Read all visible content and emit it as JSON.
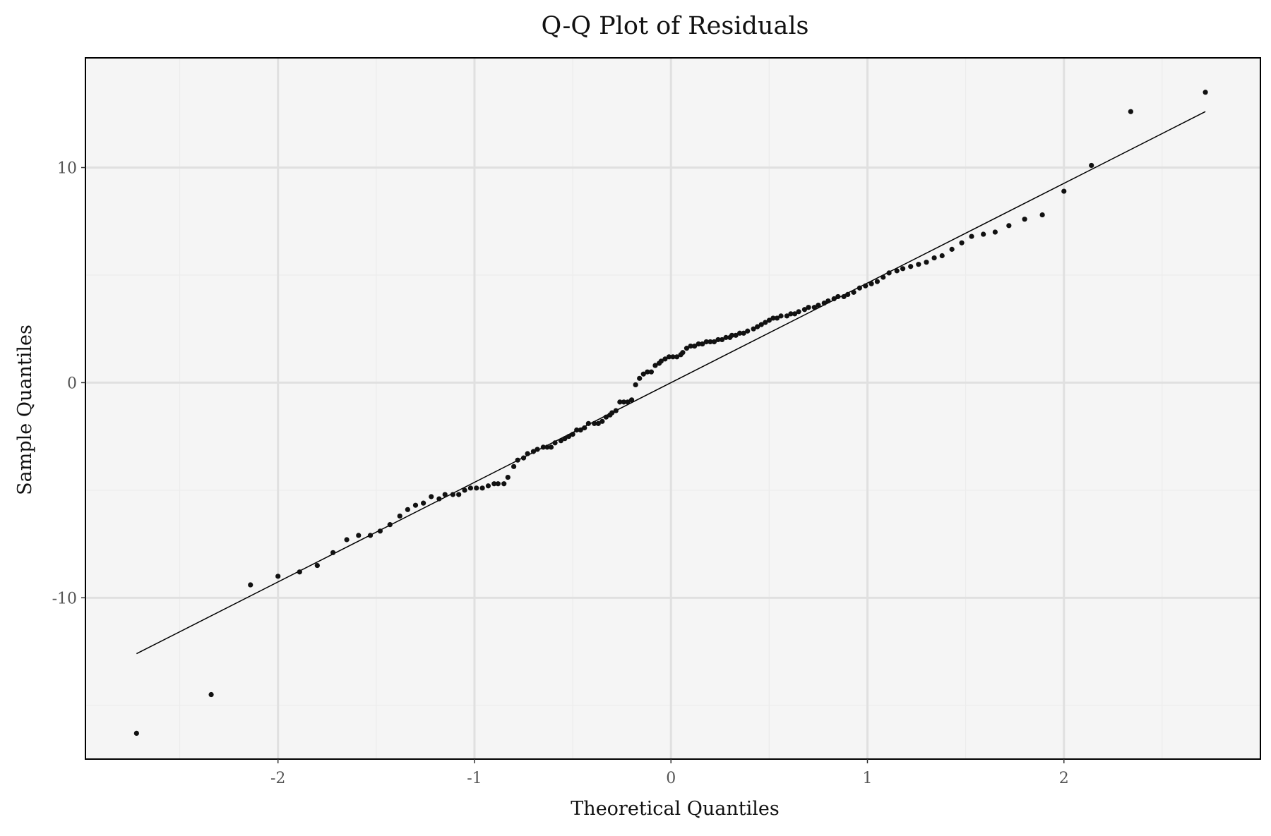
{
  "chart_data": {
    "type": "scatter",
    "title": "Q-Q Plot of Residuals",
    "xlabel": "Theoretical Quantiles",
    "ylabel": "Sample Quantiles",
    "xlim": [
      -2.98,
      3.0
    ],
    "ylim": [
      -17.5,
      15.1
    ],
    "x_ticks": [
      -2,
      -1,
      0,
      1,
      2
    ],
    "x_tick_labels": [
      "-2",
      "-1",
      "0",
      "1",
      "2"
    ],
    "y_ticks": [
      -10,
      0,
      10
    ],
    "y_tick_labels": [
      "-10",
      "0",
      "10"
    ],
    "x_minor_ticks": [
      -2.5,
      -1.5,
      -0.5,
      0.5,
      1.5,
      2.5
    ],
    "y_minor_ticks": [
      -15,
      -5,
      5
    ],
    "grid": true,
    "legend": false,
    "colors": {
      "panel": "#f5f5f5",
      "grid": "#e0e0e0",
      "grid_minor": "#ececec",
      "points": "#111111",
      "line": "#000000"
    },
    "reference_line": {
      "x": [
        -2.72,
        2.72
      ],
      "y": [
        -12.6,
        12.6
      ]
    },
    "series": [
      {
        "x": [
          -2.72,
          -2.34,
          -2.14,
          -2.0,
          -1.89,
          -1.8,
          -1.72,
          -1.65,
          -1.59,
          -1.53,
          -1.48,
          -1.43,
          -1.38,
          -1.34,
          -1.3,
          -1.26,
          -1.22,
          -1.18,
          -1.15,
          -1.11,
          -1.08,
          -1.05,
          -1.02,
          -0.99,
          -0.96,
          -0.93,
          -0.9,
          -0.88,
          -0.85,
          -0.83,
          -0.8,
          -0.78,
          -0.75,
          -0.73,
          -0.7,
          -0.68,
          -0.65,
          -0.63,
          -0.61,
          -0.59,
          -0.56,
          -0.54,
          -0.52,
          -0.5,
          -0.48,
          -0.46,
          -0.44,
          -0.42,
          -0.39,
          -0.37,
          -0.35,
          -0.33,
          -0.31,
          -0.3,
          -0.28,
          -0.26,
          -0.24,
          -0.22,
          -0.2,
          -0.18,
          -0.16,
          -0.14,
          -0.12,
          -0.1,
          -0.08,
          -0.06,
          -0.05,
          -0.03,
          -0.01,
          0.01,
          0.03,
          0.05,
          0.06,
          0.08,
          0.1,
          0.12,
          0.14,
          0.16,
          0.18,
          0.2,
          0.22,
          0.24,
          0.26,
          0.28,
          0.3,
          0.31,
          0.33,
          0.35,
          0.37,
          0.39,
          0.42,
          0.44,
          0.46,
          0.48,
          0.5,
          0.52,
          0.54,
          0.56,
          0.59,
          0.61,
          0.63,
          0.65,
          0.68,
          0.7,
          0.73,
          0.75,
          0.78,
          0.8,
          0.83,
          0.85,
          0.88,
          0.9,
          0.93,
          0.96,
          0.99,
          1.02,
          1.05,
          1.08,
          1.11,
          1.15,
          1.18,
          1.22,
          1.26,
          1.3,
          1.34,
          1.38,
          1.43,
          1.48,
          1.53,
          1.59,
          1.65,
          1.72,
          1.8,
          1.89,
          2.0,
          2.14,
          2.34,
          2.72
        ],
        "y": [
          -16.3,
          -14.5,
          -9.4,
          -9.0,
          -8.8,
          -8.5,
          -7.9,
          -7.3,
          -7.1,
          -7.1,
          -6.9,
          -6.6,
          -6.2,
          -5.9,
          -5.7,
          -5.6,
          -5.3,
          -5.4,
          -5.2,
          -5.2,
          -5.2,
          -5.0,
          -4.9,
          -4.9,
          -4.9,
          -4.8,
          -4.7,
          -4.7,
          -4.7,
          -4.4,
          -3.9,
          -3.6,
          -3.5,
          -3.3,
          -3.2,
          -3.1,
          -3.0,
          -3.0,
          -3.0,
          -2.8,
          -2.7,
          -2.6,
          -2.5,
          -2.4,
          -2.2,
          -2.2,
          -2.1,
          -1.9,
          -1.9,
          -1.9,
          -1.8,
          -1.6,
          -1.5,
          -1.4,
          -1.3,
          -0.9,
          -0.9,
          -0.9,
          -0.8,
          -0.1,
          0.2,
          0.4,
          0.5,
          0.5,
          0.8,
          0.9,
          1.0,
          1.1,
          1.2,
          1.2,
          1.2,
          1.3,
          1.4,
          1.6,
          1.7,
          1.7,
          1.8,
          1.8,
          1.9,
          1.9,
          1.9,
          2.0,
          2.0,
          2.1,
          2.1,
          2.2,
          2.2,
          2.3,
          2.3,
          2.4,
          2.5,
          2.6,
          2.7,
          2.8,
          2.9,
          3.0,
          3.0,
          3.1,
          3.1,
          3.2,
          3.2,
          3.3,
          3.4,
          3.5,
          3.5,
          3.6,
          3.7,
          3.8,
          3.9,
          4.0,
          4.0,
          4.1,
          4.2,
          4.4,
          4.5,
          4.6,
          4.7,
          4.9,
          5.1,
          5.2,
          5.3,
          5.4,
          5.5,
          5.6,
          5.8,
          5.9,
          6.2,
          6.5,
          6.8,
          6.9,
          7.0,
          7.3,
          7.6,
          7.8,
          8.9,
          10.1,
          12.6,
          13.5
        ]
      }
    ]
  }
}
